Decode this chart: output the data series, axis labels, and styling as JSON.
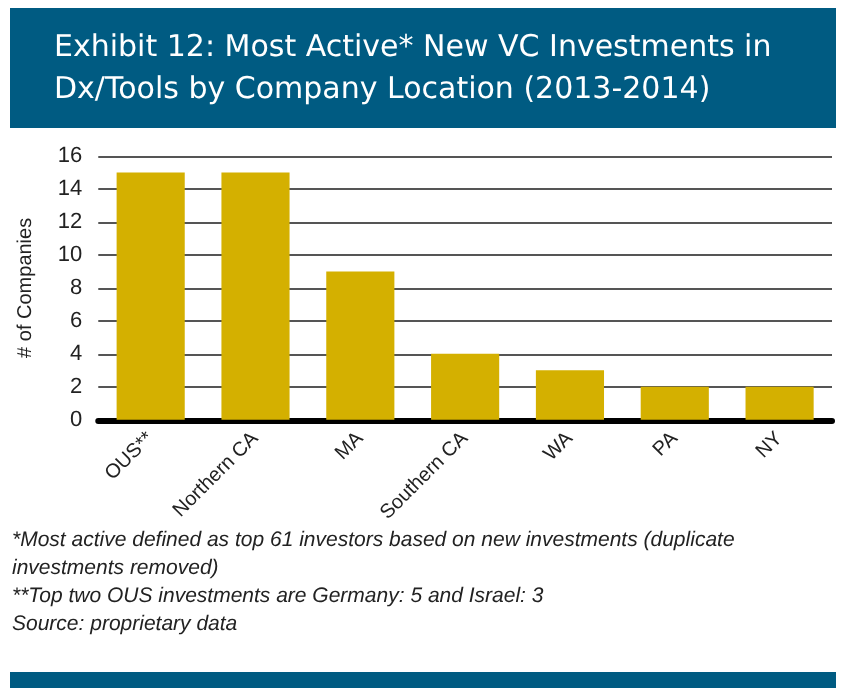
{
  "chart_data": {
    "type": "bar",
    "title": "Exhibit 12:  Most Active* New VC Investments in Dx/Tools by Company Location (2013-2014)",
    "ylabel": "# of Companies",
    "categories": [
      "OUS**",
      "Northern CA",
      "MA",
      "Southern CA",
      "WA",
      "PA",
      "NY"
    ],
    "values": [
      15,
      15,
      9,
      4,
      3,
      2,
      2
    ],
    "color": "#d4b000",
    "ylim": [
      0,
      16
    ],
    "yticks": [
      0,
      2,
      4,
      6,
      8,
      10,
      12,
      14,
      16
    ],
    "grid": "y",
    "annotations": [
      "*Most active defined as top 61 investors based on new investments (duplicate investments removed)",
      "**Top two OUS investments are Germany: 5 and Israel: 3",
      "Source: proprietary data"
    ]
  }
}
